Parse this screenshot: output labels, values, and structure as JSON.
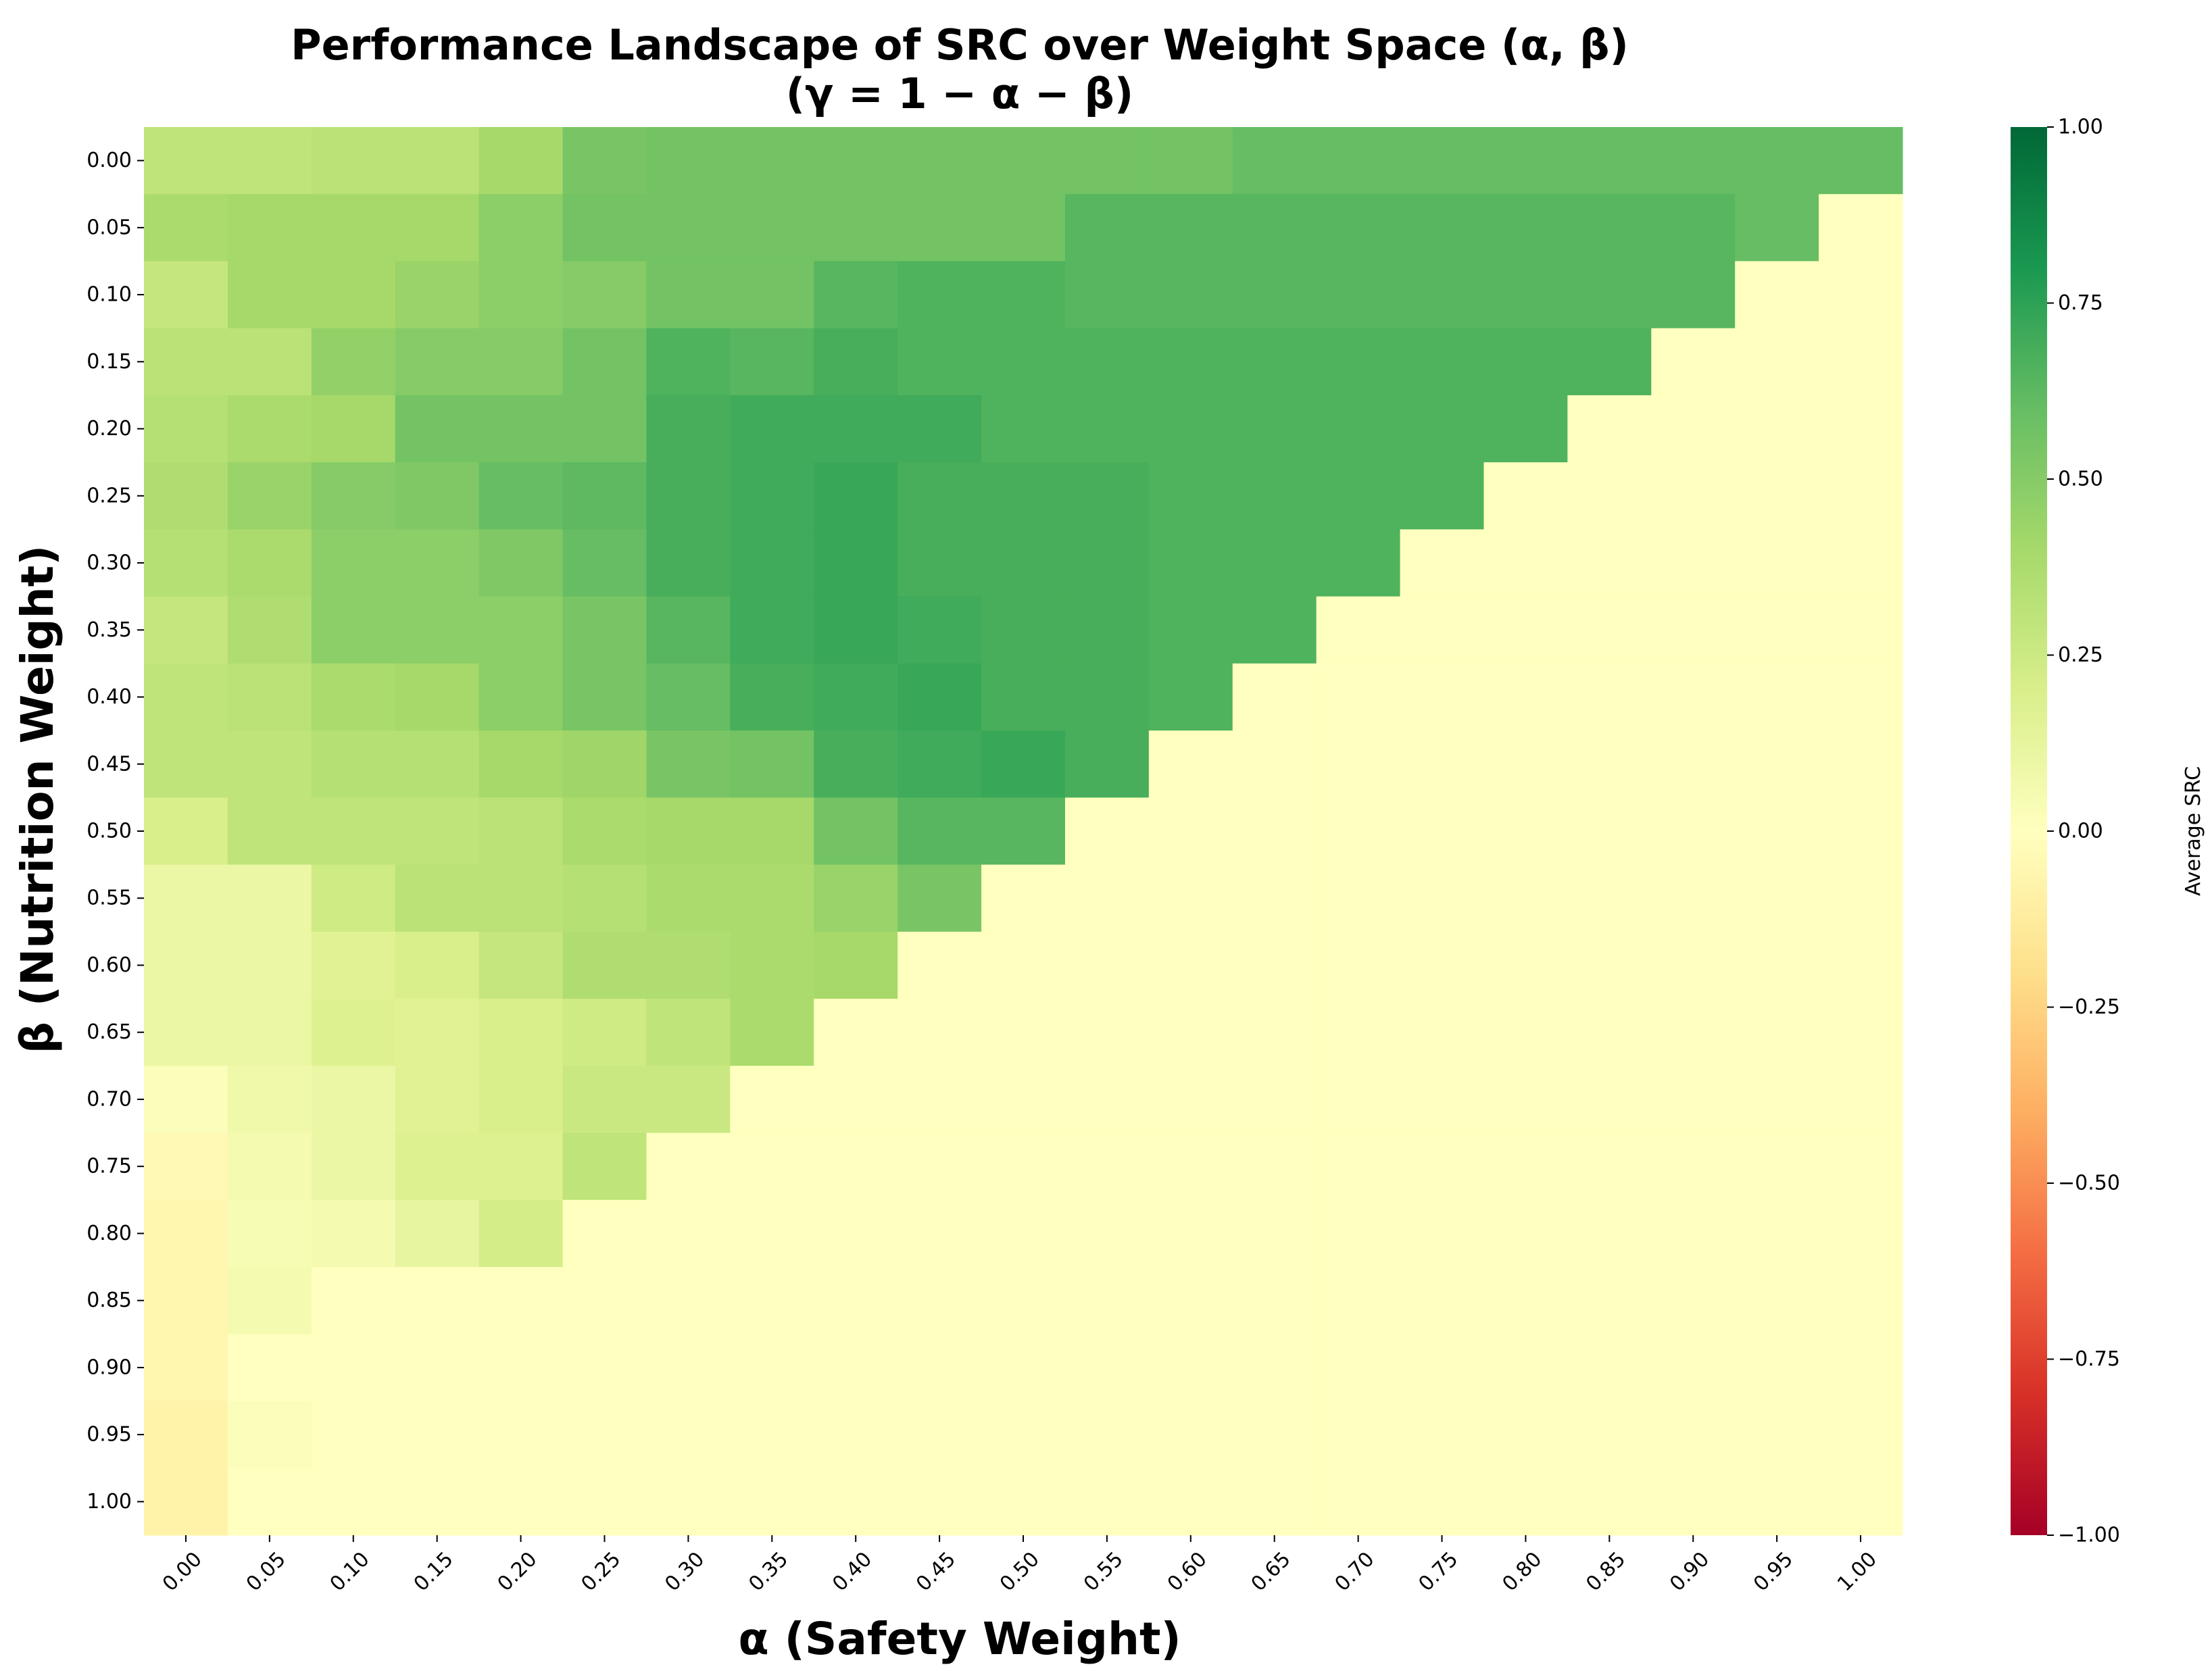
{
  "chart_data": {
    "type": "heatmap",
    "title": "Performance Landscape of SRC over Weight Space (α, β)",
    "subtitle": "(γ = 1 − α − β)",
    "xlabel": "α (Safety Weight)",
    "ylabel": "β (Nutrition Weight)",
    "x_tick_labels": [
      "0.00",
      "0.05",
      "0.10",
      "0.15",
      "0.20",
      "0.25",
      "0.30",
      "0.35",
      "0.40",
      "0.45",
      "0.50",
      "0.55",
      "0.60",
      "0.65",
      "0.70",
      "0.75",
      "0.80",
      "0.85",
      "0.90",
      "0.95",
      "1.00"
    ],
    "y_tick_labels": [
      "0.00",
      "0.05",
      "0.10",
      "0.15",
      "0.20",
      "0.25",
      "0.30",
      "0.35",
      "0.40",
      "0.45",
      "0.50",
      "0.55",
      "0.60",
      "0.65",
      "0.70",
      "0.75",
      "0.80",
      "0.85",
      "0.90",
      "0.95",
      "1.00"
    ],
    "colormap": "RdYlGn",
    "vmin": -1.0,
    "vmax": 1.0,
    "colorbar_label": "Average SRC",
    "colorbar_ticks": [
      "−1.00",
      "−0.75",
      "−0.50",
      "−0.25",
      "0.00",
      "0.25",
      "0.50",
      "0.75",
      "1.00"
    ],
    "values": [
      [
        0.3,
        0.3,
        0.32,
        0.32,
        0.4,
        0.54,
        0.56,
        0.56,
        0.56,
        0.56,
        0.56,
        0.56,
        0.56,
        0.6,
        0.6,
        0.6,
        0.6,
        0.6,
        0.6,
        0.6,
        0.6
      ],
      [
        0.38,
        0.4,
        0.4,
        0.4,
        0.48,
        0.56,
        0.56,
        0.56,
        0.56,
        0.56,
        0.56,
        0.64,
        0.64,
        0.64,
        0.64,
        0.64,
        0.64,
        0.64,
        0.64,
        0.6,
        0.0
      ],
      [
        0.28,
        0.4,
        0.4,
        0.44,
        0.48,
        0.5,
        0.56,
        0.56,
        0.64,
        0.66,
        0.66,
        0.64,
        0.64,
        0.64,
        0.64,
        0.64,
        0.64,
        0.64,
        0.64,
        0.0,
        0.0
      ],
      [
        0.32,
        0.32,
        0.46,
        0.5,
        0.5,
        0.56,
        0.66,
        0.64,
        0.68,
        0.66,
        0.66,
        0.66,
        0.66,
        0.66,
        0.66,
        0.66,
        0.66,
        0.66,
        0.0,
        0.0,
        0.0
      ],
      [
        0.34,
        0.38,
        0.4,
        0.56,
        0.56,
        0.56,
        0.68,
        0.7,
        0.7,
        0.7,
        0.66,
        0.66,
        0.66,
        0.66,
        0.66,
        0.66,
        0.66,
        0.0,
        0.0,
        0.0,
        0.0
      ],
      [
        0.36,
        0.44,
        0.5,
        0.52,
        0.6,
        0.62,
        0.68,
        0.7,
        0.72,
        0.68,
        0.68,
        0.68,
        0.66,
        0.66,
        0.66,
        0.66,
        0.0,
        0.0,
        0.0,
        0.0,
        0.0
      ],
      [
        0.34,
        0.38,
        0.48,
        0.48,
        0.52,
        0.6,
        0.68,
        0.7,
        0.72,
        0.68,
        0.68,
        0.68,
        0.66,
        0.66,
        0.66,
        0.0,
        0.0,
        0.0,
        0.0,
        0.0,
        0.0
      ],
      [
        0.28,
        0.36,
        0.48,
        0.48,
        0.48,
        0.54,
        0.64,
        0.7,
        0.72,
        0.7,
        0.68,
        0.68,
        0.66,
        0.66,
        0.0,
        0.0,
        0.0,
        0.0,
        0.0,
        0.0,
        0.0
      ],
      [
        0.3,
        0.32,
        0.38,
        0.4,
        0.48,
        0.54,
        0.6,
        0.68,
        0.7,
        0.72,
        0.68,
        0.68,
        0.66,
        0.0,
        0.0,
        0.0,
        0.0,
        0.0,
        0.0,
        0.0,
        0.0
      ],
      [
        0.3,
        0.3,
        0.34,
        0.34,
        0.4,
        0.42,
        0.54,
        0.56,
        0.68,
        0.7,
        0.72,
        0.68,
        0.0,
        0.0,
        0.0,
        0.0,
        0.0,
        0.0,
        0.0,
        0.0,
        0.0
      ],
      [
        0.2,
        0.3,
        0.3,
        0.3,
        0.32,
        0.38,
        0.4,
        0.4,
        0.56,
        0.64,
        0.64,
        0.0,
        0.0,
        0.0,
        0.0,
        0.0,
        0.0,
        0.0,
        0.0,
        0.0,
        0.0
      ],
      [
        0.1,
        0.1,
        0.24,
        0.32,
        0.32,
        0.34,
        0.38,
        0.38,
        0.44,
        0.54,
        0.0,
        0.0,
        0.0,
        0.0,
        0.0,
        0.0,
        0.0,
        0.0,
        0.0,
        0.0,
        0.0
      ],
      [
        0.1,
        0.1,
        0.16,
        0.2,
        0.28,
        0.36,
        0.36,
        0.38,
        0.4,
        0.0,
        0.0,
        0.0,
        0.0,
        0.0,
        0.0,
        0.0,
        0.0,
        0.0,
        0.0,
        0.0,
        0.0
      ],
      [
        0.1,
        0.1,
        0.18,
        0.16,
        0.2,
        0.24,
        0.3,
        0.38,
        0.0,
        0.0,
        0.0,
        0.0,
        0.0,
        0.0,
        0.0,
        0.0,
        0.0,
        0.0,
        0.0,
        0.0,
        0.0
      ],
      [
        0.02,
        0.08,
        0.1,
        0.16,
        0.2,
        0.26,
        0.26,
        0.0,
        0.0,
        0.0,
        0.0,
        0.0,
        0.0,
        0.0,
        0.0,
        0.0,
        0.0,
        0.0,
        0.0,
        0.0,
        0.0
      ],
      [
        -0.04,
        0.06,
        0.1,
        0.18,
        0.18,
        0.3,
        0.0,
        0.0,
        0.0,
        0.0,
        0.0,
        0.0,
        0.0,
        0.0,
        0.0,
        0.0,
        0.0,
        0.0,
        0.0,
        0.0,
        0.0
      ],
      [
        -0.06,
        0.04,
        0.06,
        0.12,
        0.22,
        0.0,
        0.0,
        0.0,
        0.0,
        0.0,
        0.0,
        0.0,
        0.0,
        0.0,
        0.0,
        0.0,
        0.0,
        0.0,
        0.0,
        0.0,
        0.0
      ],
      [
        -0.06,
        0.06,
        0.0,
        0.0,
        0.0,
        0.0,
        0.0,
        0.0,
        0.0,
        0.0,
        0.0,
        0.0,
        0.0,
        0.0,
        0.0,
        0.0,
        0.0,
        0.0,
        0.0,
        0.0,
        0.0
      ],
      [
        -0.06,
        0.0,
        0.0,
        0.0,
        0.0,
        0.0,
        0.0,
        0.0,
        0.0,
        0.0,
        0.0,
        0.0,
        0.0,
        0.0,
        0.0,
        0.0,
        0.0,
        0.0,
        0.0,
        0.0,
        0.0
      ],
      [
        -0.08,
        0.02,
        0.0,
        0.0,
        0.0,
        0.0,
        0.0,
        0.0,
        0.0,
        0.0,
        0.0,
        0.0,
        0.0,
        0.0,
        0.0,
        0.0,
        0.0,
        0.0,
        0.0,
        0.0,
        0.0
      ],
      [
        -0.08,
        0.0,
        0.0,
        0.0,
        0.0,
        0.0,
        0.0,
        0.0,
        0.0,
        0.0,
        0.0,
        0.0,
        0.0,
        0.0,
        0.0,
        0.0,
        0.0,
        0.0,
        0.0,
        0.0,
        0.0
      ]
    ]
  }
}
